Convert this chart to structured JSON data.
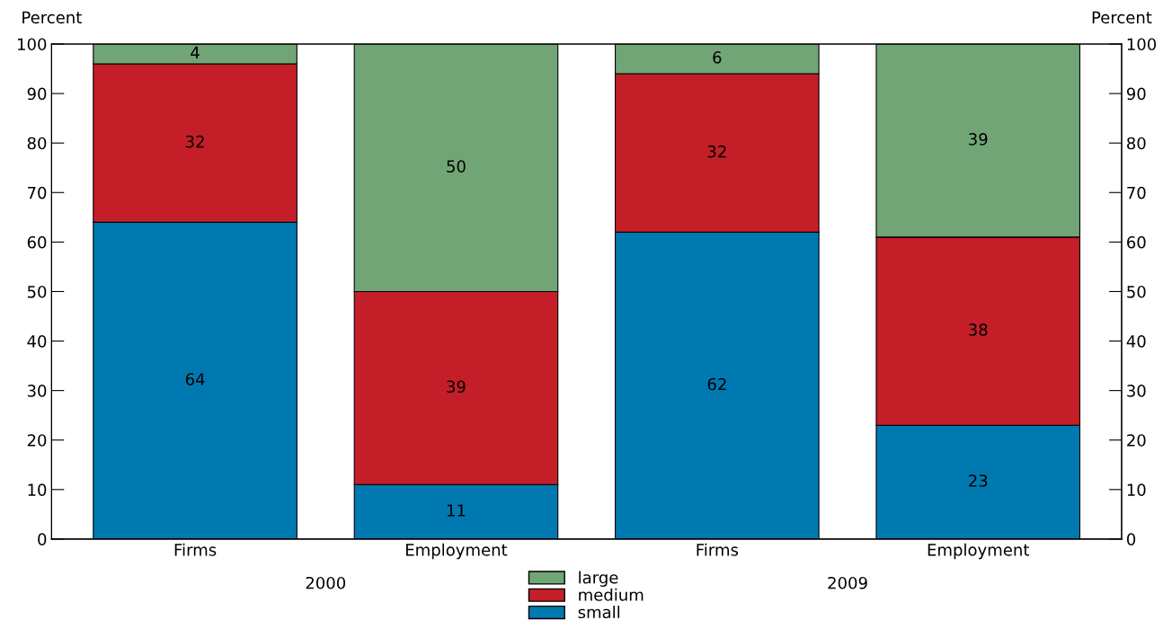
{
  "chart_data": {
    "type": "bar",
    "stacked": true,
    "ylabel": "Percent",
    "y2label": "Percent",
    "categories": [
      "Firms",
      "Employment",
      "Firms",
      "Employment"
    ],
    "annotations": [
      "2000",
      "2009"
    ],
    "series": [
      {
        "name": "small",
        "color": "#0079b0",
        "values": [
          64,
          11,
          62,
          23
        ]
      },
      {
        "name": "medium",
        "color": "#c41f28",
        "values": [
          32,
          39,
          32,
          38
        ]
      },
      {
        "name": "large",
        "color": "#72a575",
        "values": [
          4,
          50,
          6,
          39
        ]
      }
    ],
    "ylim": [
      0,
      100
    ],
    "yticks": [
      0,
      10,
      20,
      30,
      40,
      50,
      60,
      70,
      80,
      90,
      100
    ],
    "y2lim": [
      0,
      100
    ],
    "y2ticks": [
      0,
      10,
      20,
      30,
      40,
      50,
      60,
      70,
      80,
      90,
      100
    ],
    "data_labels": true,
    "legend": "bottom",
    "grid": false
  }
}
